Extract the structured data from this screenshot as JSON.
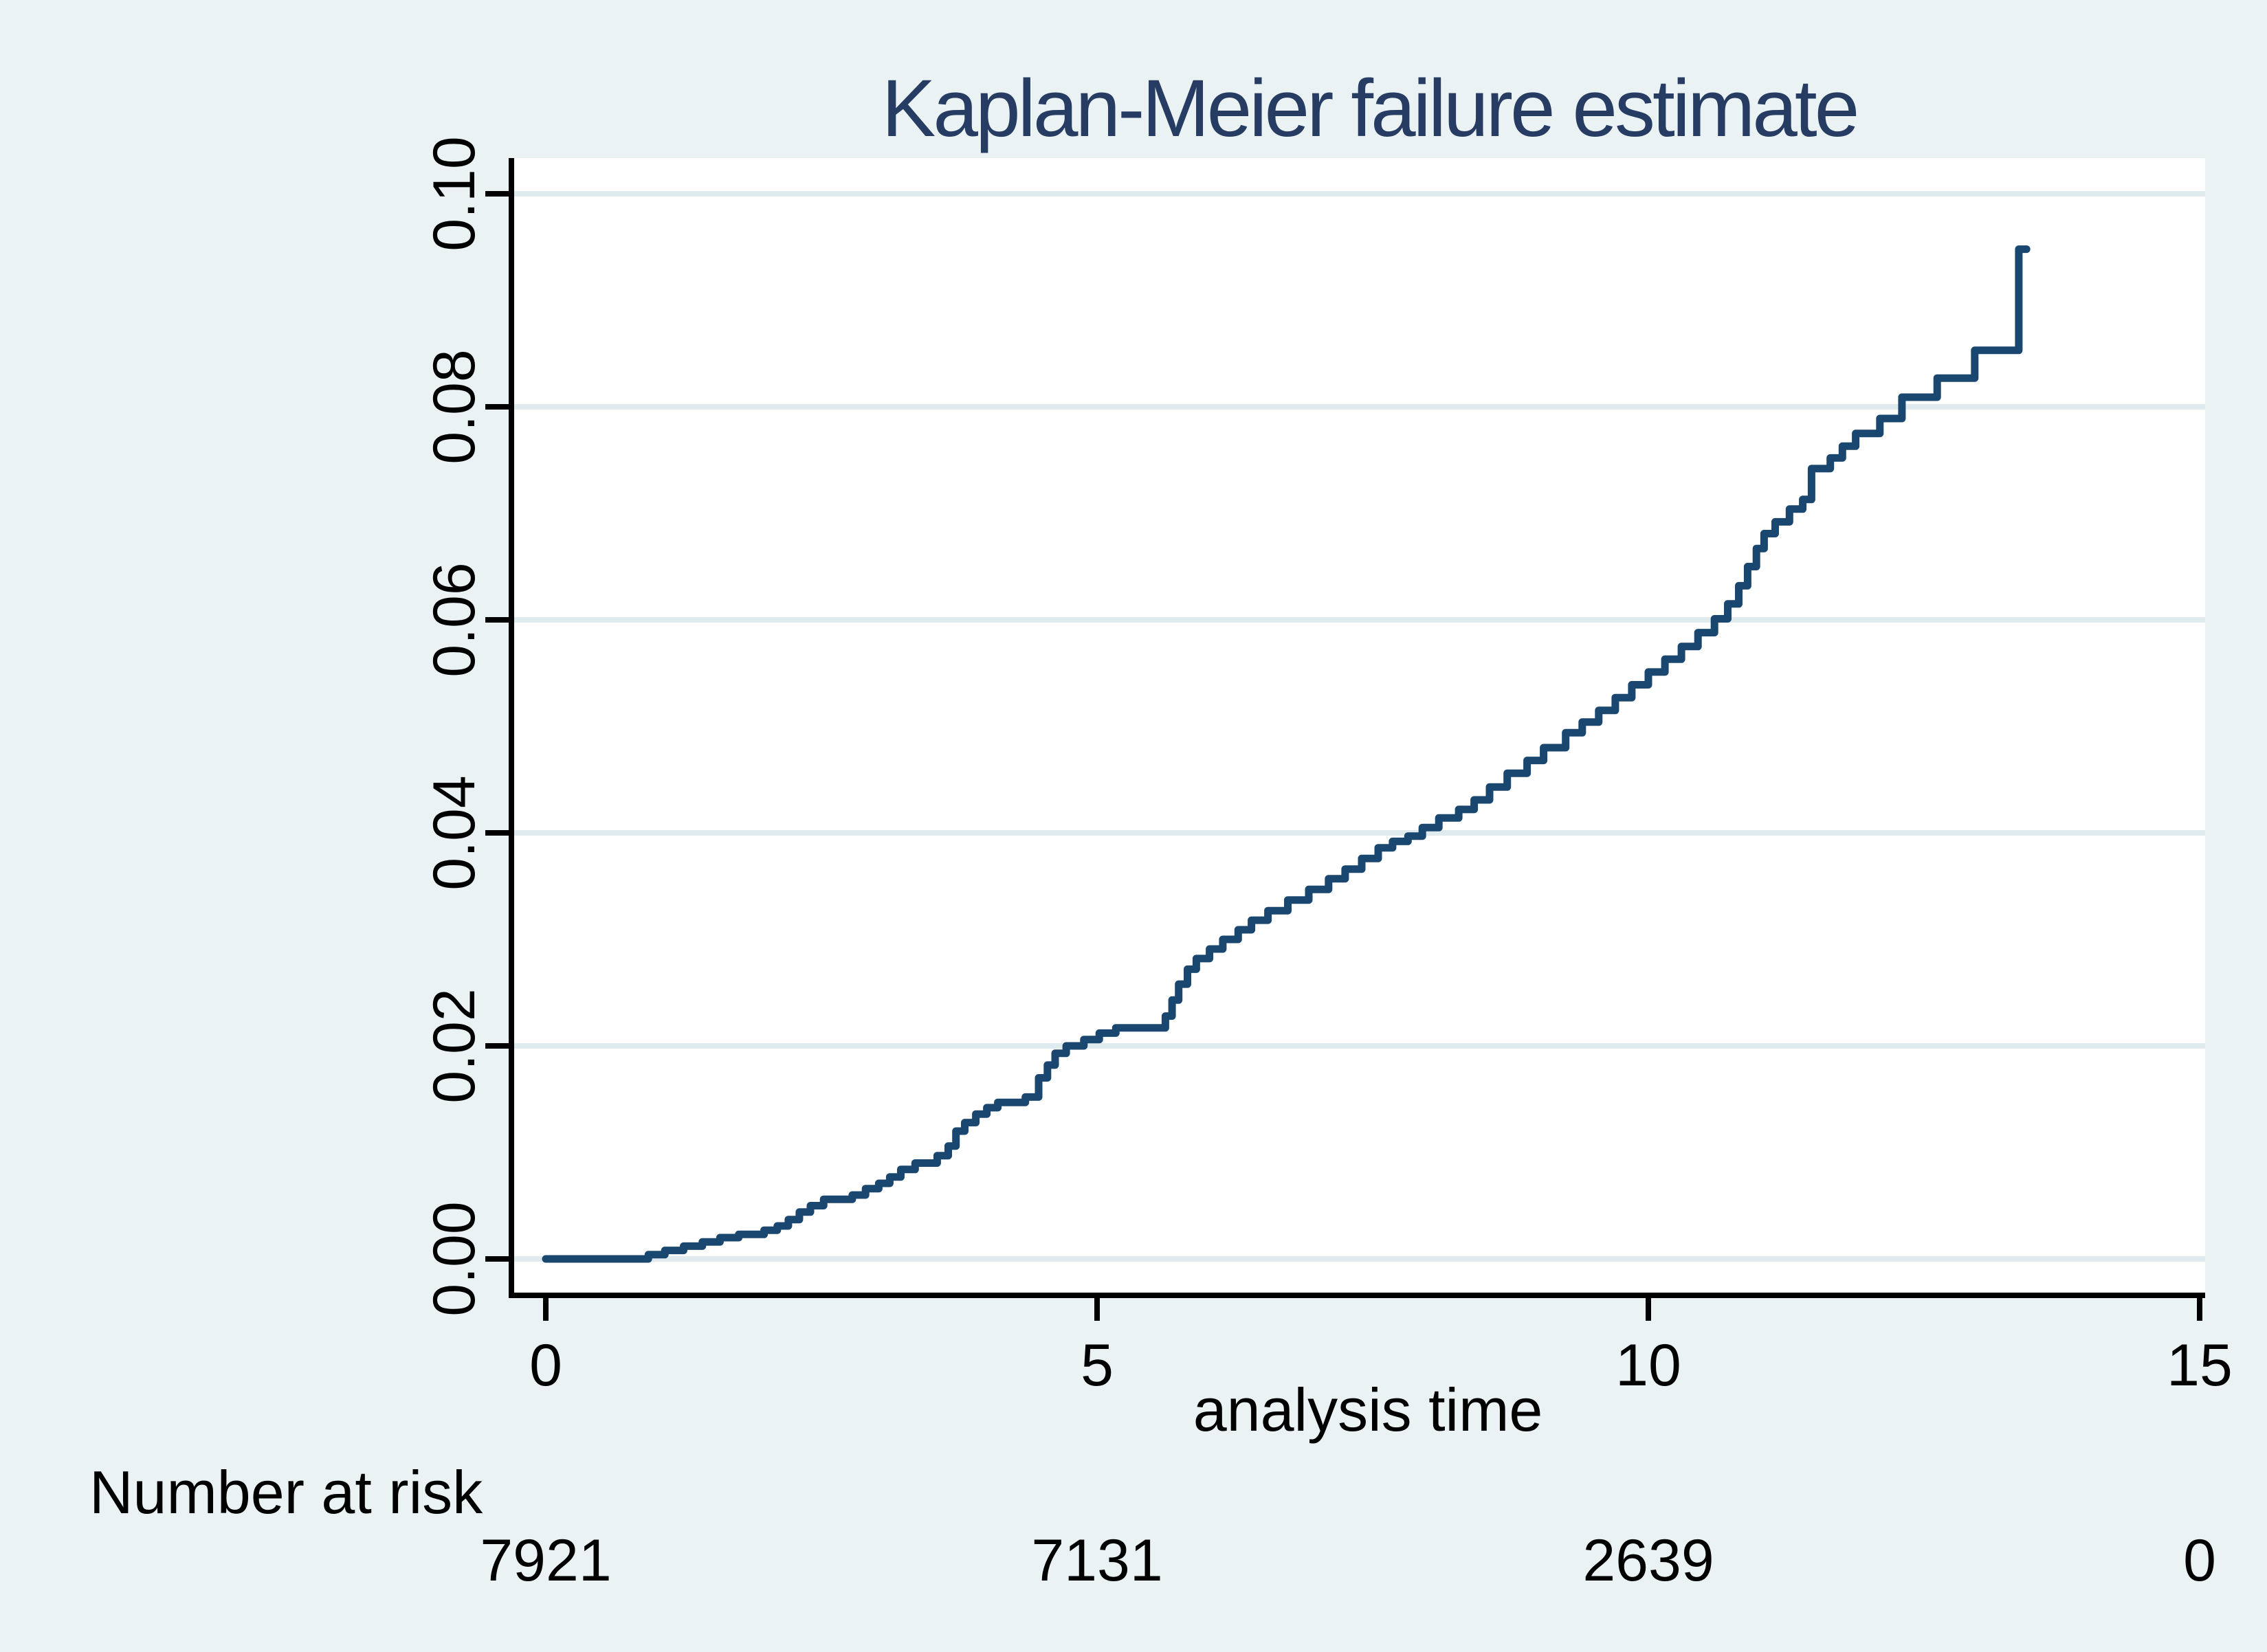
{
  "title": "Kaplan-Meier failure estimate",
  "axes": {
    "x_label": "analysis time",
    "y_label": ""
  },
  "risk_table": {
    "header": "Number at risk",
    "values": [
      "7921",
      "7131",
      "2639",
      "0"
    ]
  },
  "colors": {
    "page_bg": "#eaf2f3",
    "plot_bg": "#ffffff",
    "grid": "#dfebee",
    "curve": "#1a476f",
    "title": "#273c63",
    "axis": "#000000"
  },
  "chart_data": {
    "type": "line",
    "subtype": "step-after",
    "title": "Kaplan-Meier failure estimate",
    "xlabel": "analysis time",
    "ylabel": "",
    "xlim": [
      0,
      15
    ],
    "ylim": [
      0.0,
      0.1
    ],
    "grid": "horizontal",
    "legend": "none",
    "x_ticks": [
      {
        "value": 0,
        "label": "0"
      },
      {
        "value": 5,
        "label": "5"
      },
      {
        "value": 10,
        "label": "10"
      },
      {
        "value": 15,
        "label": "15"
      }
    ],
    "y_ticks": [
      {
        "value": 0.0,
        "label": "0.00"
      },
      {
        "value": 0.02,
        "label": "0.02"
      },
      {
        "value": 0.04,
        "label": "0.04"
      },
      {
        "value": 0.06,
        "label": "0.06"
      },
      {
        "value": 0.08,
        "label": "0.08"
      },
      {
        "value": 0.1,
        "label": "0.10"
      }
    ],
    "series": [
      {
        "name": "failure estimate",
        "end_t": 13.43,
        "points": [
          [
            0,
            0
          ],
          [
            0.93,
            0.0004
          ],
          [
            1.08,
            0.0008
          ],
          [
            1.25,
            0.0012
          ],
          [
            1.42,
            0.0016
          ],
          [
            1.58,
            0.002
          ],
          [
            1.75,
            0.0023
          ],
          [
            1.98,
            0.0027
          ],
          [
            2.1,
            0.0031
          ],
          [
            2.2,
            0.0037
          ],
          [
            2.3,
            0.0044
          ],
          [
            2.4,
            0.005
          ],
          [
            2.52,
            0.0056
          ],
          [
            2.78,
            0.006
          ],
          [
            2.9,
            0.0066
          ],
          [
            3.02,
            0.0071
          ],
          [
            3.12,
            0.0077
          ],
          [
            3.22,
            0.0084
          ],
          [
            3.35,
            0.009
          ],
          [
            3.55,
            0.0097
          ],
          [
            3.65,
            0.0106
          ],
          [
            3.72,
            0.012
          ],
          [
            3.8,
            0.0128
          ],
          [
            3.9,
            0.0136
          ],
          [
            4.0,
            0.0142
          ],
          [
            4.1,
            0.0147
          ],
          [
            4.35,
            0.0152
          ],
          [
            4.47,
            0.017
          ],
          [
            4.55,
            0.0182
          ],
          [
            4.62,
            0.0193
          ],
          [
            4.72,
            0.02
          ],
          [
            4.88,
            0.0206
          ],
          [
            5.02,
            0.0212
          ],
          [
            5.17,
            0.0217
          ],
          [
            5.62,
            0.0228
          ],
          [
            5.68,
            0.0243
          ],
          [
            5.74,
            0.0258
          ],
          [
            5.82,
            0.0272
          ],
          [
            5.9,
            0.0282
          ],
          [
            6.02,
            0.0291
          ],
          [
            6.14,
            0.03
          ],
          [
            6.28,
            0.0309
          ],
          [
            6.4,
            0.0318
          ],
          [
            6.55,
            0.0327
          ],
          [
            6.73,
            0.0337
          ],
          [
            6.92,
            0.0347
          ],
          [
            7.1,
            0.0357
          ],
          [
            7.25,
            0.0366
          ],
          [
            7.4,
            0.0376
          ],
          [
            7.55,
            0.0386
          ],
          [
            7.68,
            0.0392
          ],
          [
            7.82,
            0.0397
          ],
          [
            7.95,
            0.0405
          ],
          [
            8.1,
            0.0414
          ],
          [
            8.28,
            0.0422
          ],
          [
            8.42,
            0.0431
          ],
          [
            8.56,
            0.0443
          ],
          [
            8.72,
            0.0456
          ],
          [
            8.9,
            0.0468
          ],
          [
            9.05,
            0.048
          ],
          [
            9.25,
            0.0494
          ],
          [
            9.4,
            0.0504
          ],
          [
            9.55,
            0.0515
          ],
          [
            9.7,
            0.0527
          ],
          [
            9.85,
            0.0539
          ],
          [
            10.0,
            0.0551
          ],
          [
            10.15,
            0.0563
          ],
          [
            10.3,
            0.0575
          ],
          [
            10.45,
            0.0588
          ],
          [
            10.6,
            0.0601
          ],
          [
            10.72,
            0.0615
          ],
          [
            10.82,
            0.0632
          ],
          [
            10.9,
            0.065
          ],
          [
            10.98,
            0.0667
          ],
          [
            11.05,
            0.0681
          ],
          [
            11.15,
            0.0692
          ],
          [
            11.28,
            0.0704
          ],
          [
            11.4,
            0.0713
          ],
          [
            11.48,
            0.0742
          ],
          [
            11.65,
            0.0752
          ],
          [
            11.76,
            0.0763
          ],
          [
            11.88,
            0.0775
          ],
          [
            12.1,
            0.0789
          ],
          [
            12.3,
            0.0809
          ],
          [
            12.62,
            0.0827
          ],
          [
            12.96,
            0.0853
          ],
          [
            13.36,
            0.0948
          ]
        ]
      }
    ],
    "number_at_risk": {
      "times": [
        0,
        5,
        10,
        15
      ],
      "counts": [
        7921,
        7131,
        2639,
        0
      ]
    }
  }
}
